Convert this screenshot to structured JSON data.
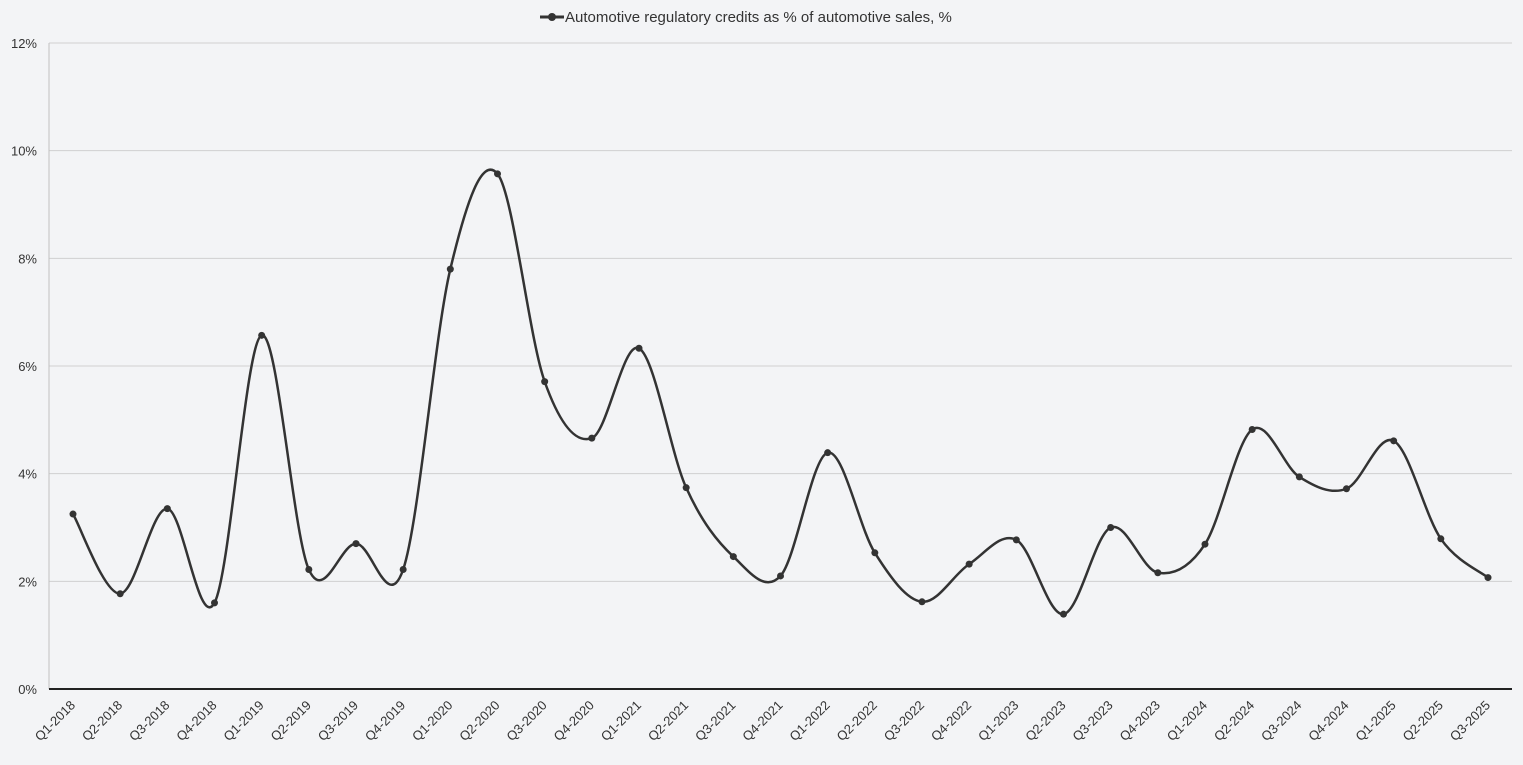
{
  "chart_data": {
    "type": "line",
    "title": "",
    "xlabel": "",
    "ylabel": "",
    "legend_position": "top-center",
    "grid": "horizontal",
    "ylim": [
      0,
      12
    ],
    "y_ticks": [
      0,
      2,
      4,
      6,
      8,
      10,
      12
    ],
    "y_tick_labels": [
      "0%",
      "2%",
      "4%",
      "6%",
      "8%",
      "10%",
      "12%"
    ],
    "categories": [
      "Q1-2018",
      "Q2-2018",
      "Q3-2018",
      "Q4-2018",
      "Q1-2019",
      "Q2-2019",
      "Q3-2019",
      "Q4-2019",
      "Q1-2020",
      "Q2-2020",
      "Q3-2020",
      "Q4-2020",
      "Q1-2021",
      "Q2-2021",
      "Q3-2021",
      "Q4-2021",
      "Q1-2022",
      "Q2-2022",
      "Q3-2022",
      "Q4-2022",
      "Q1-2023",
      "Q2-2023",
      "Q3-2023",
      "Q4-2023",
      "Q1-2024",
      "Q2-2024",
      "Q3-2024",
      "Q4-2024",
      "Q1-2025",
      "Q2-2025",
      "Q3-2025"
    ],
    "series": [
      {
        "name": "Automotive regulatory credits as % of automotive sales, %",
        "color": "#333333",
        "values": [
          3.25,
          1.77,
          3.35,
          1.6,
          6.57,
          2.22,
          2.7,
          2.22,
          7.8,
          9.57,
          5.71,
          4.66,
          6.33,
          3.74,
          2.46,
          2.1,
          4.39,
          2.53,
          1.62,
          2.32,
          2.77,
          1.39,
          3.0,
          2.16,
          2.69,
          4.82,
          3.94,
          3.72,
          4.61,
          2.79,
          2.07
        ]
      }
    ]
  },
  "colors": {
    "background": "#f3f4f6",
    "line": "#333333",
    "grid": "#d0d0d0",
    "axis": "#222222"
  }
}
